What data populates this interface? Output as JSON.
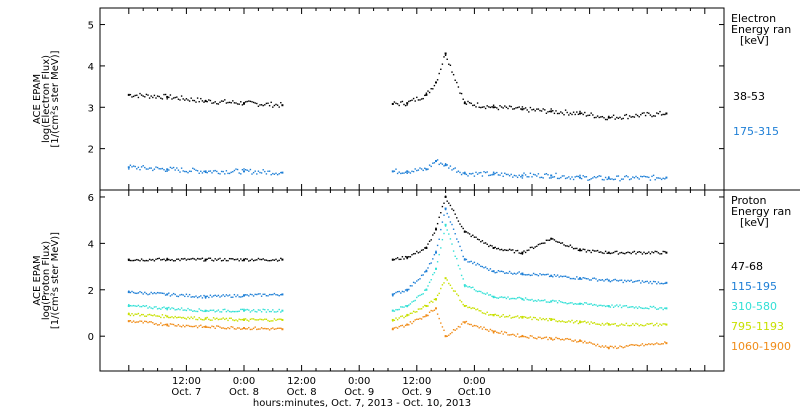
{
  "chart_data": [
    {
      "type": "scatter",
      "panel": "electron",
      "ylabel": [
        "ACE EPAM",
        "log(Electron Flux)",
        "[1/(cm²s ster MeV)]"
      ],
      "ylim": [
        1,
        5.4
      ],
      "yticks": [
        2,
        3,
        4,
        5
      ],
      "legend_title": [
        "Electron",
        "Energy ran",
        "[keV]"
      ],
      "series": [
        {
          "name": "38-53",
          "color": "#000000",
          "x": [
            0,
            8,
            16,
            24,
            32,
            40,
            48,
            55,
            58,
            62,
            64,
            66,
            70,
            76,
            82,
            88,
            94,
            100,
            112
          ],
          "values": [
            3.3,
            3.25,
            3.15,
            3.1,
            3.05,
            null,
            null,
            3.08,
            3.1,
            3.3,
            3.6,
            4.3,
            3.1,
            3.0,
            2.95,
            2.9,
            2.85,
            2.75,
            2.85
          ]
        },
        {
          "name": "175-315",
          "color": "#1e7fd6",
          "x": [
            0,
            8,
            16,
            24,
            32,
            40,
            48,
            55,
            58,
            62,
            64,
            66,
            70,
            76,
            82,
            88,
            94,
            100,
            112
          ],
          "values": [
            1.55,
            1.5,
            1.45,
            1.45,
            1.42,
            null,
            null,
            1.45,
            1.45,
            1.5,
            1.7,
            1.6,
            1.4,
            1.38,
            1.35,
            1.35,
            1.3,
            1.28,
            1.3
          ]
        }
      ]
    },
    {
      "type": "scatter",
      "panel": "proton",
      "ylabel": [
        "ACE EPAM",
        "log(Proton Flux)",
        "[1/(cm²s ster MeV)]"
      ],
      "ylim": [
        -1.5,
        6.3
      ],
      "yticks": [
        0,
        2,
        4,
        6
      ],
      "legend_title": [
        "Proton",
        "Energy ran",
        "[keV]"
      ],
      "series": [
        {
          "name": "47-68",
          "color": "#000000",
          "x": [
            0,
            8,
            16,
            24,
            32,
            40,
            48,
            55,
            58,
            62,
            64,
            66,
            70,
            76,
            82,
            88,
            94,
            100,
            112
          ],
          "values": [
            3.3,
            3.3,
            3.3,
            3.3,
            3.3,
            null,
            null,
            3.3,
            3.4,
            3.8,
            4.6,
            6.0,
            4.5,
            3.8,
            3.6,
            4.2,
            3.7,
            3.6,
            3.6
          ]
        },
        {
          "name": "115-195",
          "color": "#1e7fd6",
          "x": [
            0,
            8,
            16,
            24,
            32,
            40,
            48,
            55,
            58,
            62,
            64,
            66,
            70,
            76,
            82,
            88,
            94,
            100,
            112
          ],
          "values": [
            1.9,
            1.8,
            1.7,
            1.75,
            1.8,
            null,
            null,
            1.8,
            2.0,
            2.8,
            3.6,
            5.5,
            3.3,
            2.8,
            2.7,
            2.6,
            2.5,
            2.4,
            2.3
          ]
        },
        {
          "name": "310-580",
          "color": "#33e0d6",
          "x": [
            0,
            8,
            16,
            24,
            32,
            40,
            48,
            55,
            58,
            62,
            64,
            66,
            70,
            76,
            82,
            88,
            94,
            100,
            112
          ],
          "values": [
            1.3,
            1.2,
            1.1,
            1.1,
            1.1,
            null,
            null,
            1.1,
            1.3,
            2.0,
            2.9,
            4.8,
            2.2,
            1.7,
            1.6,
            1.5,
            1.4,
            1.3,
            1.2
          ]
        },
        {
          "name": "795-1193",
          "color": "#c8e000",
          "x": [
            0,
            8,
            16,
            24,
            32,
            40,
            48,
            55,
            58,
            62,
            64,
            66,
            70,
            76,
            82,
            88,
            94,
            100,
            112
          ],
          "values": [
            0.95,
            0.85,
            0.75,
            0.7,
            0.7,
            null,
            null,
            0.7,
            0.9,
            1.3,
            1.6,
            2.5,
            1.3,
            0.9,
            0.8,
            0.7,
            0.6,
            0.5,
            0.5
          ]
        },
        {
          "name": "1060-1900",
          "color": "#f08c18",
          "x": [
            0,
            8,
            16,
            24,
            32,
            40,
            48,
            55,
            58,
            62,
            64,
            66,
            70,
            76,
            82,
            88,
            94,
            100,
            112
          ],
          "values": [
            0.65,
            0.5,
            0.4,
            0.35,
            0.3,
            null,
            null,
            0.3,
            0.5,
            0.9,
            1.2,
            0.0,
            0.6,
            0.2,
            0.0,
            -0.1,
            -0.2,
            -0.5,
            -0.3
          ]
        }
      ]
    }
  ],
  "x_axis": {
    "ticks": [
      {
        "top": "12:00",
        "bottom": "Oct. 7"
      },
      {
        "top": "0:00",
        "bottom": "Oct. 8"
      },
      {
        "top": "12:00",
        "bottom": "Oct. 8"
      },
      {
        "top": "0:00",
        "bottom": "Oct. 9"
      },
      {
        "top": "12:00",
        "bottom": "Oct. 9"
      },
      {
        "top": "0:00",
        "bottom": "Oct.10"
      }
    ],
    "label": "hours:minutes, Oct.  7, 2013 - Oct. 10, 2013"
  }
}
